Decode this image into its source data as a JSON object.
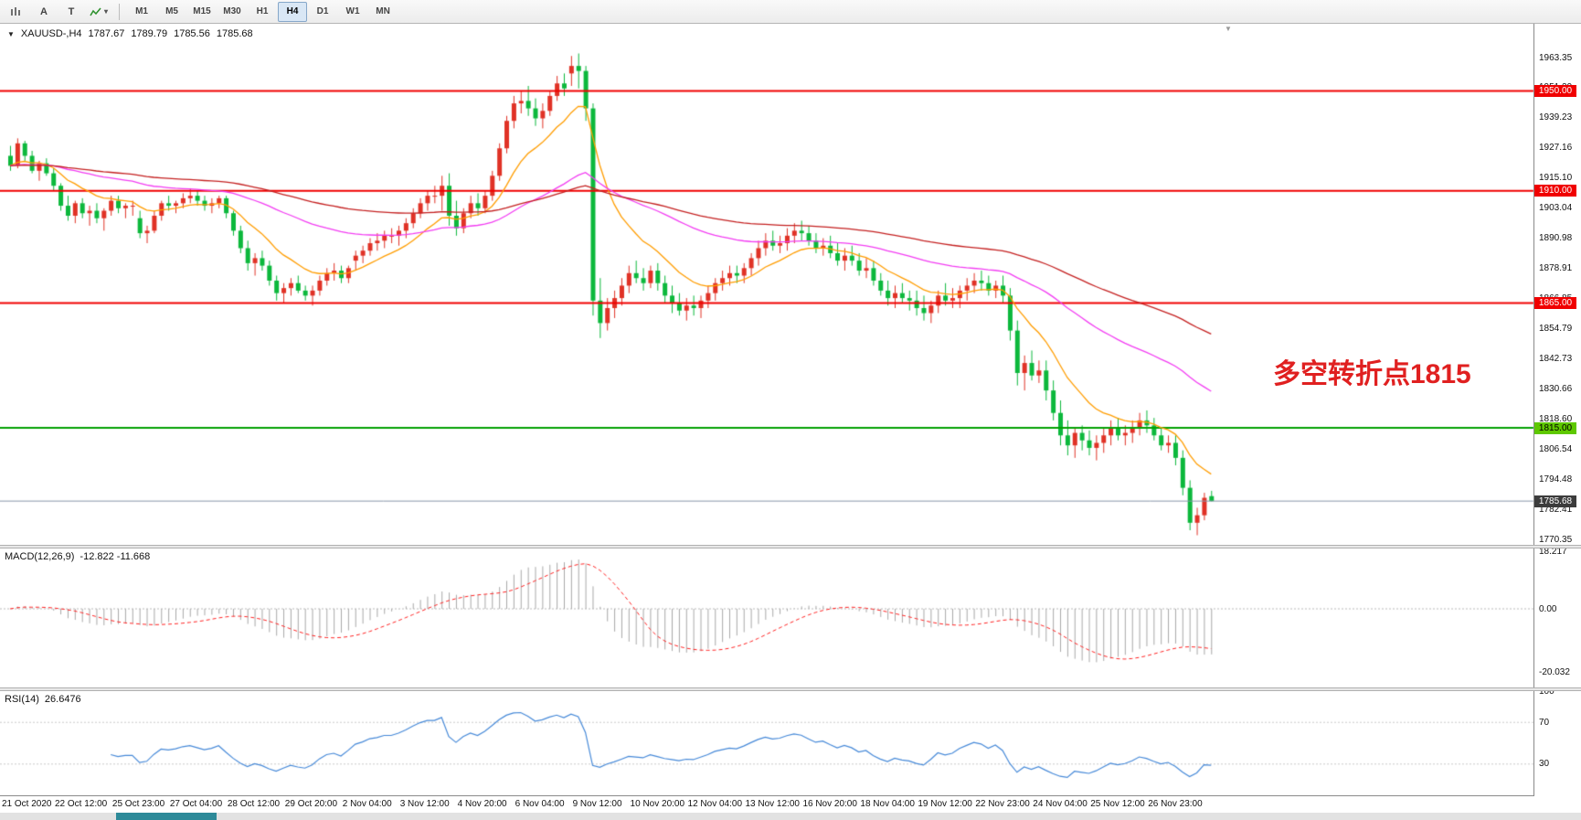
{
  "toolbar": {
    "buttons": {
      "text_a": "A",
      "text_t": "T"
    },
    "timeframes": [
      {
        "label": "M1"
      },
      {
        "label": "M5"
      },
      {
        "label": "M15"
      },
      {
        "label": "M30"
      },
      {
        "label": "H1"
      },
      {
        "label": "H4"
      },
      {
        "label": "D1"
      },
      {
        "label": "W1"
      },
      {
        "label": "MN"
      }
    ],
    "selected_timeframe": "H4"
  },
  "symbol_info": {
    "collapse": "▼",
    "symbol": "XAUUSD-,H4",
    "open": "1787.67",
    "high": "1789.79",
    "low": "1785.56",
    "close": "1785.68"
  },
  "annotation": {
    "text": "多空转折点1815",
    "color": "#e02020"
  },
  "axes": {
    "price_labels": [
      "1963.35",
      "1951.29",
      "1939.23",
      "1927.16",
      "1915.10",
      "1903.04",
      "1890.98",
      "1878.91",
      "1866.85",
      "1854.79",
      "1842.73",
      "1830.66",
      "1818.60",
      "1806.54",
      "1794.48",
      "1782.41",
      "1770.35"
    ],
    "time_labels": [
      "21 Oct 2020",
      "22 Oct 12:00",
      "25 Oct 23:00",
      "27 Oct 04:00",
      "28 Oct 12:00",
      "29 Oct 20:00",
      "2 Nov 04:00",
      "3 Nov 12:00",
      "4 Nov 20:00",
      "6 Nov 04:00",
      "9 Nov 12:00",
      "10 Nov 20:00",
      "12 Nov 04:00",
      "13 Nov 12:00",
      "16 Nov 20:00",
      "18 Nov 04:00",
      "19 Nov 12:00",
      "22 Nov 23:00",
      "24 Nov 04:00",
      "25 Nov 12:00",
      "26 Nov 23:00"
    ],
    "macd_labels": [
      "18.217",
      "0.00",
      "-20.032"
    ],
    "rsi_labels": [
      "100",
      "70",
      "30"
    ]
  },
  "hlines": [
    {
      "price": 1950.0,
      "label": "1950.00",
      "color": "#f00000",
      "tag_bg": "#f00000",
      "text": "#ffffff"
    },
    {
      "price": 1910.0,
      "label": "1910.00",
      "color": "#f00000",
      "tag_bg": "#f00000",
      "text": "#ffffff"
    },
    {
      "price": 1865.0,
      "label": "1865.00",
      "color": "#f00000",
      "tag_bg": "#f00000",
      "text": "#ffffff"
    },
    {
      "price": 1815.0,
      "label": "1815.00",
      "color": "#00a000",
      "tag_bg": "#5ec800",
      "text": "#000000"
    }
  ],
  "current_price": {
    "value": 1785.68,
    "label": "1785.68",
    "line_color": "#8896a8",
    "tag_bg": "#3c3c3c",
    "text": "#ffffff"
  },
  "panels": {
    "macd": {
      "title": "MACD(12,26,9)",
      "values": "-12.822 -11.668",
      "fast": 12,
      "slow": 26,
      "signal": 9,
      "hist_color": "#a8a8a8",
      "signal_color": "#ff2222"
    },
    "rsi": {
      "title": "RSI(14)",
      "value": "26.6476",
      "period": 14,
      "color": "#4689d8",
      "levels": [
        70,
        30
      ]
    }
  },
  "chart_data": {
    "type": "candlestick",
    "title": "XAUUSD-,H4",
    "timeframe": "H4",
    "y_range": [
      1770.35,
      1963.35
    ],
    "up_color": "#e03226",
    "down_color": "#0cb83c",
    "moving_averages": [
      {
        "period": 12,
        "method": "ema",
        "color": "#ff9d00"
      },
      {
        "period": 50,
        "method": "ema",
        "color": "#f23cf2"
      },
      {
        "period": 100,
        "method": "ema",
        "color": "#c42020"
      }
    ],
    "candles": [
      [
        1924,
        1928,
        1918,
        1920
      ],
      [
        1920,
        1931,
        1919,
        1929
      ],
      [
        1929,
        1930,
        1922,
        1924
      ],
      [
        1924,
        1926,
        1917,
        1918
      ],
      [
        1918,
        1922,
        1914,
        1921
      ],
      [
        1921,
        1923,
        1916,
        1917
      ],
      [
        1917,
        1919,
        1910,
        1912
      ],
      [
        1912,
        1913,
        1902,
        1904
      ],
      [
        1904,
        1908,
        1898,
        1900
      ],
      [
        1900,
        1906,
        1897,
        1905
      ],
      [
        1905,
        1907,
        1899,
        1901
      ],
      [
        1901,
        1904,
        1896,
        1902
      ],
      [
        1902,
        1905,
        1897,
        1899
      ],
      [
        1899,
        1903,
        1894,
        1902
      ],
      [
        1902,
        1908,
        1900,
        1906
      ],
      [
        1906,
        1908,
        1901,
        1903
      ],
      [
        1903,
        1905,
        1899,
        1904
      ],
      [
        1904,
        1906,
        1900,
        1904
      ],
      [
        1899,
        1902,
        1891,
        1893
      ],
      [
        1893,
        1896,
        1889,
        1894
      ],
      [
        1894,
        1902,
        1893,
        1900
      ],
      [
        1900,
        1906,
        1898,
        1905
      ],
      [
        1905,
        1908,
        1902,
        1904
      ],
      [
        1904,
        1906,
        1901,
        1905
      ],
      [
        1905,
        1909,
        1903,
        1907
      ],
      [
        1907,
        1911,
        1905,
        1908
      ],
      [
        1908,
        1910,
        1904,
        1906
      ],
      [
        1906,
        1908,
        1902,
        1904
      ],
      [
        1904,
        1907,
        1901,
        1905
      ],
      [
        1905,
        1908,
        1903,
        1907
      ],
      [
        1907,
        1908,
        1899,
        1901
      ],
      [
        1901,
        1902,
        1892,
        1894
      ],
      [
        1894,
        1896,
        1885,
        1887
      ],
      [
        1887,
        1890,
        1878,
        1881
      ],
      [
        1881,
        1885,
        1876,
        1883
      ],
      [
        1883,
        1886,
        1878,
        1880
      ],
      [
        1880,
        1882,
        1872,
        1874
      ],
      [
        1874,
        1876,
        1866,
        1869
      ],
      [
        1869,
        1873,
        1865,
        1871
      ],
      [
        1871,
        1875,
        1868,
        1873
      ],
      [
        1873,
        1876,
        1869,
        1870
      ],
      [
        1870,
        1872,
        1866,
        1868
      ],
      [
        1868,
        1872,
        1864,
        1870
      ],
      [
        1870,
        1876,
        1868,
        1874
      ],
      [
        1874,
        1879,
        1872,
        1877
      ],
      [
        1877,
        1881,
        1874,
        1878
      ],
      [
        1878,
        1880,
        1873,
        1875
      ],
      [
        1875,
        1880,
        1873,
        1879
      ],
      [
        1882,
        1886,
        1878,
        1884
      ],
      [
        1884,
        1888,
        1881,
        1886
      ],
      [
        1886,
        1891,
        1884,
        1889
      ],
      [
        1889,
        1893,
        1886,
        1890
      ],
      [
        1890,
        1894,
        1887,
        1892
      ],
      [
        1892,
        1895,
        1889,
        1892
      ],
      [
        1892,
        1896,
        1888,
        1894
      ],
      [
        1894,
        1899,
        1891,
        1897
      ],
      [
        1897,
        1903,
        1895,
        1901
      ],
      [
        1901,
        1907,
        1899,
        1905
      ],
      [
        1905,
        1910,
        1902,
        1908
      ],
      [
        1908,
        1912,
        1905,
        1908
      ],
      [
        1908,
        1916,
        1902,
        1912
      ],
      [
        1912,
        1917,
        1896,
        1900
      ],
      [
        1900,
        1906,
        1892,
        1895
      ],
      [
        1895,
        1903,
        1893,
        1901
      ],
      [
        1901,
        1908,
        1899,
        1905
      ],
      [
        1905,
        1909,
        1900,
        1903
      ],
      [
        1903,
        1910,
        1901,
        1908
      ],
      [
        1908,
        1918,
        1906,
        1916
      ],
      [
        1916,
        1929,
        1914,
        1927
      ],
      [
        1927,
        1940,
        1925,
        1938
      ],
      [
        1938,
        1948,
        1935,
        1945
      ],
      [
        1945,
        1950,
        1941,
        1946
      ],
      [
        1946,
        1952,
        1940,
        1943
      ],
      [
        1943,
        1947,
        1936,
        1939
      ],
      [
        1939,
        1945,
        1935,
        1942
      ],
      [
        1942,
        1950,
        1940,
        1948
      ],
      [
        1948,
        1956,
        1946,
        1953
      ],
      [
        1953,
        1957,
        1948,
        1951
      ],
      [
        1957,
        1964,
        1952,
        1960
      ],
      [
        1960,
        1965,
        1951,
        1958
      ],
      [
        1958,
        1960,
        1938,
        1943
      ],
      [
        1943,
        1945,
        1860,
        1866
      ],
      [
        1866,
        1875,
        1851,
        1857
      ],
      [
        1857,
        1867,
        1854,
        1863
      ],
      [
        1863,
        1870,
        1859,
        1867
      ],
      [
        1867,
        1875,
        1864,
        1872
      ],
      [
        1872,
        1880,
        1869,
        1877
      ],
      [
        1877,
        1882,
        1873,
        1875
      ],
      [
        1875,
        1879,
        1870,
        1873
      ],
      [
        1873,
        1880,
        1871,
        1878
      ],
      [
        1878,
        1881,
        1870,
        1873
      ],
      [
        1873,
        1876,
        1865,
        1868
      ],
      [
        1868,
        1872,
        1861,
        1865
      ],
      [
        1865,
        1869,
        1860,
        1862
      ],
      [
        1862,
        1867,
        1858,
        1864
      ],
      [
        1864,
        1868,
        1860,
        1863
      ],
      [
        1863,
        1868,
        1859,
        1866
      ],
      [
        1866,
        1872,
        1863,
        1869
      ],
      [
        1869,
        1875,
        1866,
        1873
      ],
      [
        1873,
        1878,
        1870,
        1875
      ],
      [
        1875,
        1880,
        1872,
        1877
      ],
      [
        1877,
        1880,
        1873,
        1876
      ],
      [
        1876,
        1881,
        1873,
        1879
      ],
      [
        1879,
        1885,
        1876,
        1883
      ],
      [
        1883,
        1890,
        1880,
        1887
      ],
      [
        1887,
        1893,
        1884,
        1890
      ],
      [
        1890,
        1894,
        1886,
        1888
      ],
      [
        1888,
        1892,
        1885,
        1889
      ],
      [
        1889,
        1895,
        1886,
        1892
      ],
      [
        1892,
        1897,
        1889,
        1894
      ],
      [
        1894,
        1898,
        1890,
        1893
      ],
      [
        1893,
        1896,
        1888,
        1890
      ],
      [
        1890,
        1893,
        1885,
        1887
      ],
      [
        1887,
        1891,
        1884,
        1888
      ],
      [
        1888,
        1892,
        1883,
        1885
      ],
      [
        1885,
        1889,
        1880,
        1882
      ],
      [
        1882,
        1887,
        1878,
        1884
      ],
      [
        1884,
        1888,
        1880,
        1882
      ],
      [
        1882,
        1885,
        1876,
        1878
      ],
      [
        1878,
        1883,
        1875,
        1879
      ],
      [
        1879,
        1882,
        1872,
        1874
      ],
      [
        1874,
        1877,
        1868,
        1870
      ],
      [
        1870,
        1874,
        1864,
        1867
      ],
      [
        1867,
        1872,
        1863,
        1869
      ],
      [
        1869,
        1873,
        1865,
        1867
      ],
      [
        1867,
        1870,
        1862,
        1866
      ],
      [
        1866,
        1870,
        1860,
        1863
      ],
      [
        1863,
        1868,
        1858,
        1861
      ],
      [
        1861,
        1866,
        1857,
        1864
      ],
      [
        1864,
        1870,
        1861,
        1868
      ],
      [
        1868,
        1873,
        1864,
        1866
      ],
      [
        1866,
        1871,
        1863,
        1867
      ],
      [
        1867,
        1872,
        1863,
        1870
      ],
      [
        1870,
        1875,
        1866,
        1872
      ],
      [
        1872,
        1877,
        1869,
        1874
      ],
      [
        1874,
        1878,
        1870,
        1873
      ],
      [
        1873,
        1876,
        1868,
        1870
      ],
      [
        1870,
        1874,
        1867,
        1872
      ],
      [
        1872,
        1876,
        1865,
        1868
      ],
      [
        1868,
        1871,
        1850,
        1854
      ],
      [
        1854,
        1858,
        1832,
        1837
      ],
      [
        1837,
        1844,
        1830,
        1841
      ],
      [
        1841,
        1846,
        1834,
        1836
      ],
      [
        1836,
        1842,
        1833,
        1838
      ],
      [
        1838,
        1842,
        1826,
        1830
      ],
      [
        1830,
        1834,
        1818,
        1821
      ],
      [
        1821,
        1826,
        1808,
        1812
      ],
      [
        1812,
        1818,
        1804,
        1808
      ],
      [
        1808,
        1815,
        1803,
        1813
      ],
      [
        1813,
        1816,
        1806,
        1810
      ],
      [
        1810,
        1814,
        1804,
        1807
      ],
      [
        1807,
        1812,
        1802,
        1809
      ],
      [
        1809,
        1815,
        1805,
        1812
      ],
      [
        1812,
        1818,
        1808,
        1815
      ],
      [
        1815,
        1819,
        1810,
        1812
      ],
      [
        1812,
        1816,
        1808,
        1813
      ],
      [
        1813,
        1818,
        1809,
        1815
      ],
      [
        1815,
        1821,
        1812,
        1818
      ],
      [
        1818,
        1822,
        1813,
        1816
      ],
      [
        1816,
        1819,
        1810,
        1812
      ],
      [
        1812,
        1815,
        1806,
        1808
      ],
      [
        1808,
        1812,
        1805,
        1809
      ],
      [
        1809,
        1812,
        1800,
        1803
      ],
      [
        1803,
        1806,
        1788,
        1791
      ],
      [
        1791,
        1794,
        1774,
        1777
      ],
      [
        1777,
        1783,
        1772,
        1780
      ],
      [
        1780,
        1789,
        1778,
        1787
      ],
      [
        1787.67,
        1789.79,
        1785.56,
        1785.68
      ]
    ]
  }
}
